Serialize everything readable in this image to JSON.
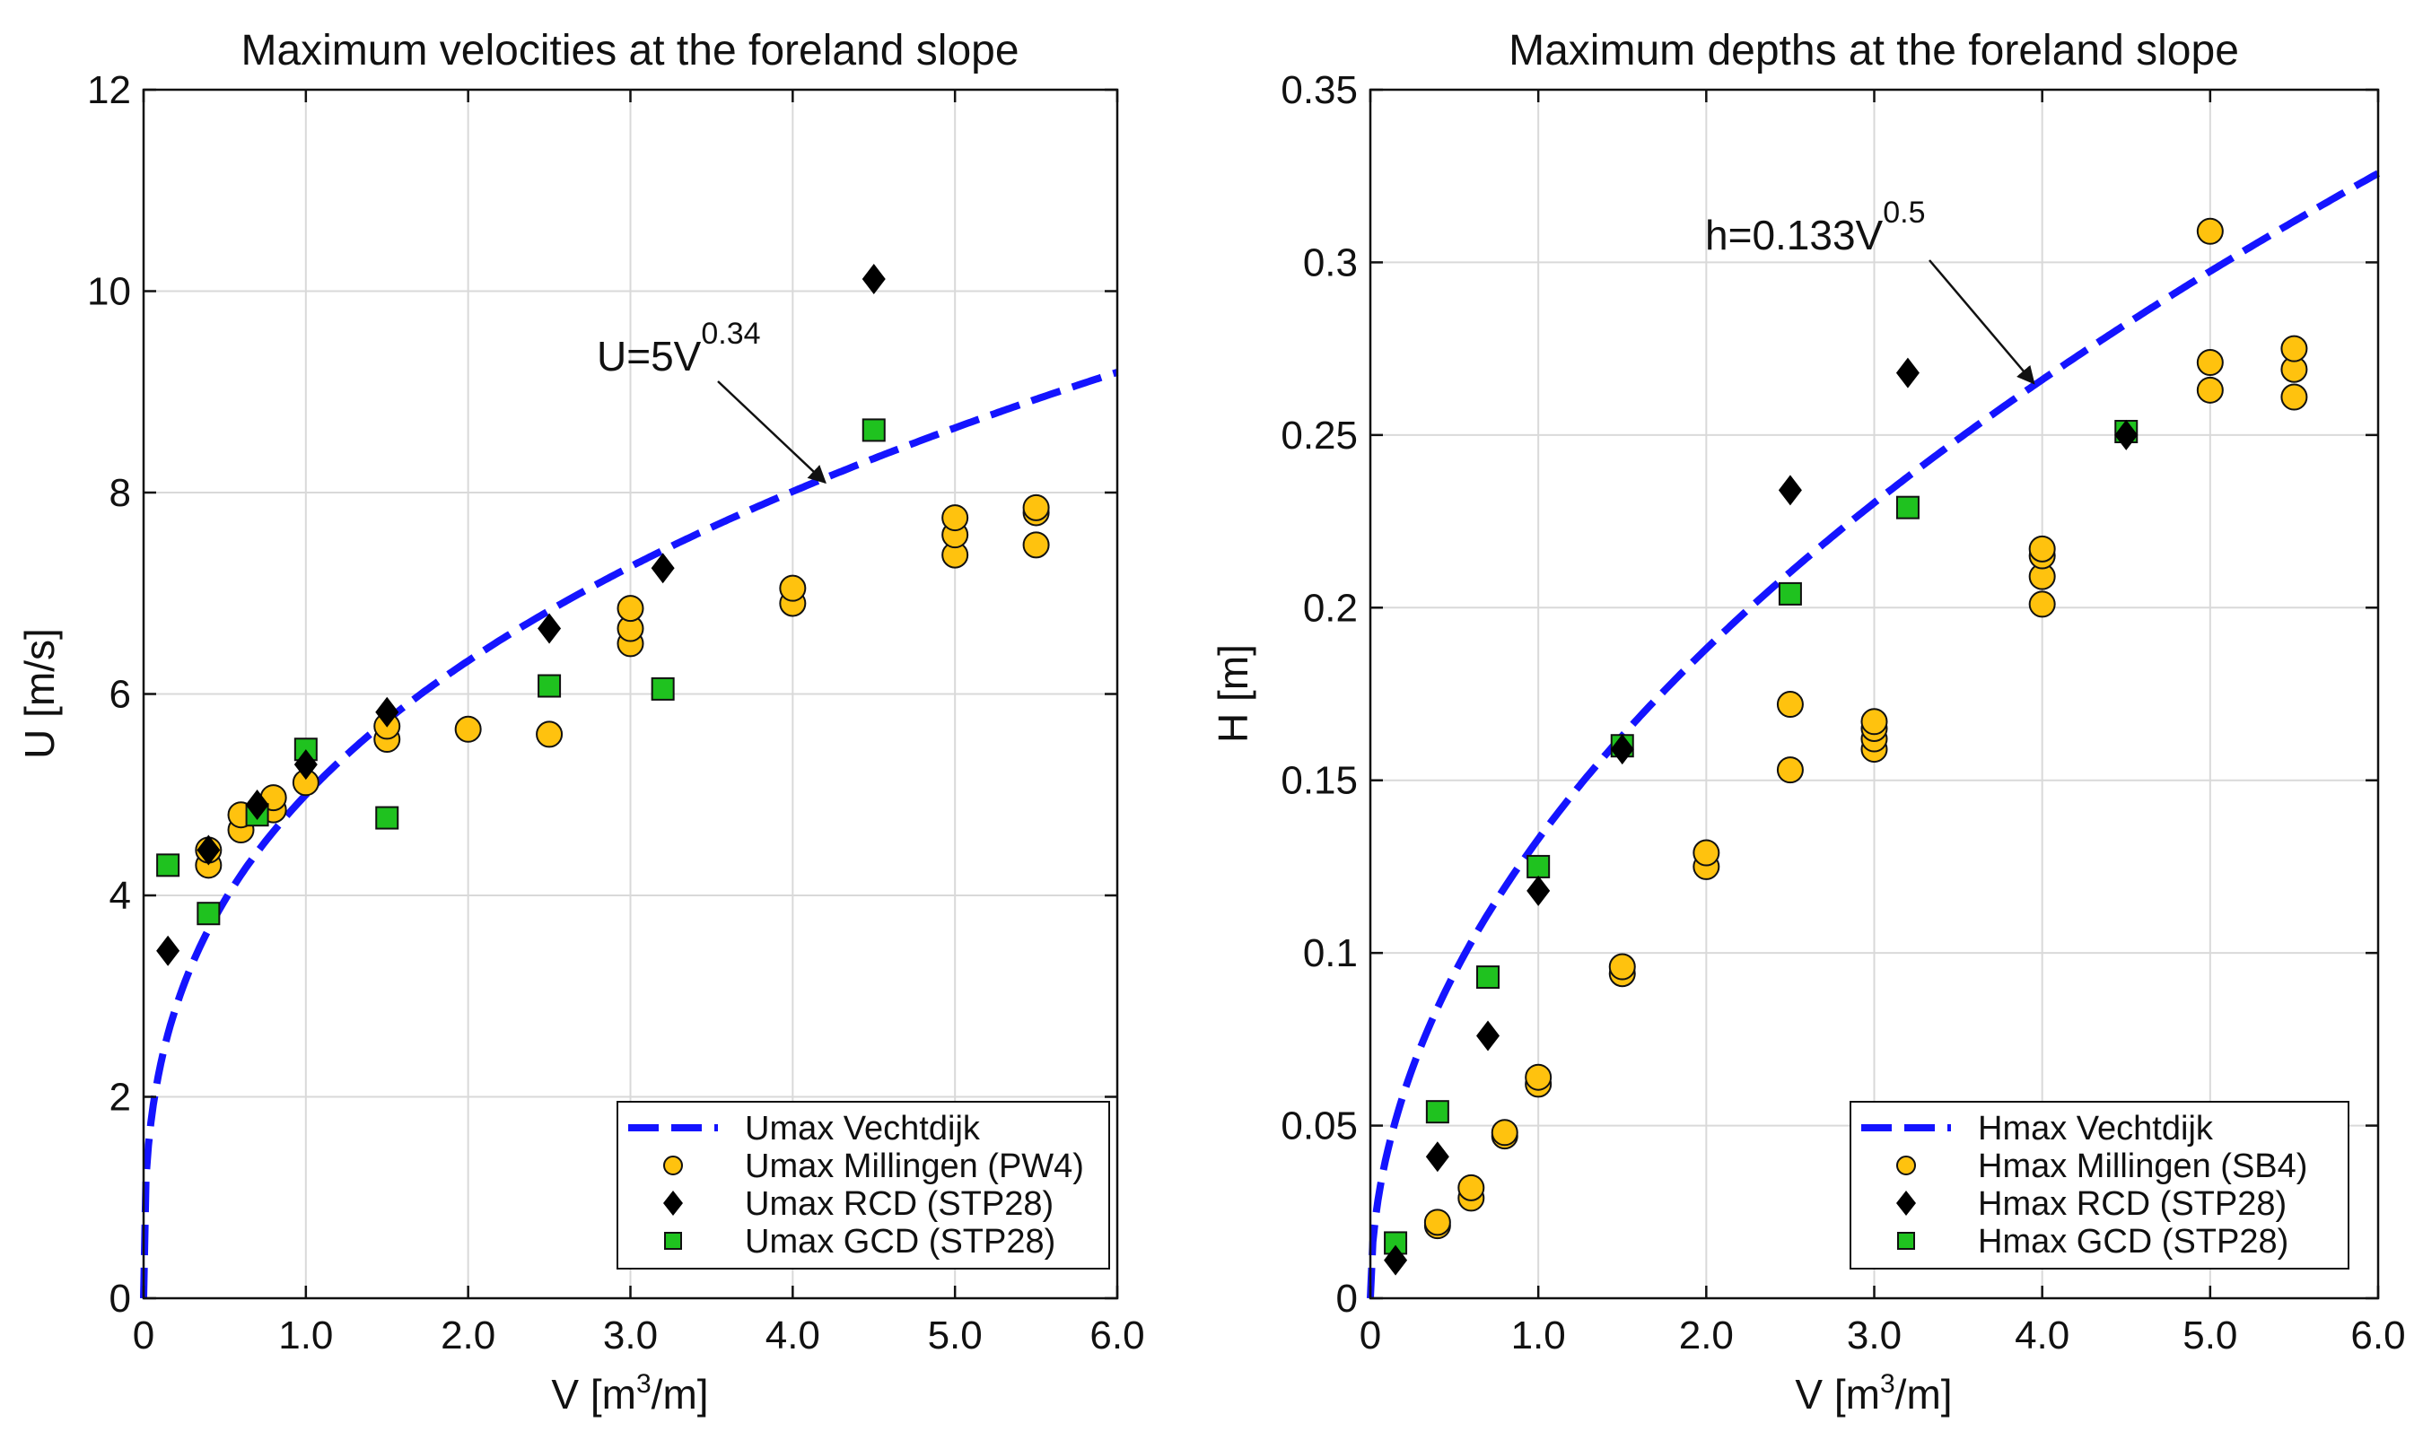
{
  "colors": {
    "fit_line": "#1414ff",
    "millingen": "#ffc20e",
    "rcd": "#000000",
    "gcd": "#1fc21f",
    "grid": "#d9d9d9"
  },
  "chart_data": [
    {
      "type": "scatter",
      "title": "Maximum velocities at the foreland slope",
      "xlabel_main": "V [m",
      "xlabel_sup": "3",
      "xlabel_tail": "/m]",
      "ylabel": "U [m/s]",
      "xlim": [
        0,
        6
      ],
      "ylim": [
        0,
        12
      ],
      "xticks": [
        0,
        1,
        2,
        3,
        4,
        5,
        6
      ],
      "xtick_labels": [
        "0",
        "1.0",
        "2.0",
        "3.0",
        "4.0",
        "5.0",
        "6.0"
      ],
      "yticks": [
        0,
        2,
        4,
        6,
        8,
        10,
        12
      ],
      "ytick_labels": [
        "0",
        "2",
        "4",
        "6",
        "8",
        "10",
        "12"
      ],
      "grid": true,
      "legend_position": "bottom-right",
      "fit": {
        "name": "Umax Vechtdijk",
        "coef": 5,
        "exp": 0.34
      },
      "annotation": {
        "base": "U=5V",
        "sup": "0.34",
        "arrow_tip": [
          4.2,
          8.1
        ]
      },
      "series": [
        {
          "name": "Umax Millingen (PW4)",
          "marker": "circle",
          "points": [
            [
              0.4,
              4.3
            ],
            [
              0.4,
              4.45
            ],
            [
              0.6,
              4.65
            ],
            [
              0.6,
              4.8
            ],
            [
              0.8,
              4.85
            ],
            [
              0.8,
              4.97
            ],
            [
              1.0,
              5.12
            ],
            [
              1.5,
              5.55
            ],
            [
              1.5,
              5.68
            ],
            [
              2.0,
              5.65
            ],
            [
              2.5,
              5.6
            ],
            [
              3.0,
              6.5
            ],
            [
              3.0,
              6.65
            ],
            [
              3.0,
              6.85
            ],
            [
              4.0,
              6.9
            ],
            [
              4.0,
              7.05
            ],
            [
              5.0,
              7.38
            ],
            [
              5.0,
              7.58
            ],
            [
              5.0,
              7.75
            ],
            [
              5.5,
              7.48
            ],
            [
              5.5,
              7.8
            ],
            [
              5.5,
              7.85
            ]
          ]
        },
        {
          "name": "Umax RCD (STP28)",
          "marker": "diamond",
          "points": [
            [
              0.15,
              3.45
            ],
            [
              0.4,
              4.45
            ],
            [
              0.7,
              4.9
            ],
            [
              1.0,
              5.3
            ],
            [
              1.5,
              5.82
            ],
            [
              2.5,
              6.65
            ],
            [
              3.2,
              7.25
            ],
            [
              4.5,
              10.12
            ]
          ]
        },
        {
          "name": "Umax GCD (STP28)",
          "marker": "square",
          "points": [
            [
              0.15,
              4.3
            ],
            [
              0.4,
              3.82
            ],
            [
              0.7,
              4.8
            ],
            [
              1.0,
              5.45
            ],
            [
              1.5,
              4.77
            ],
            [
              2.5,
              6.08
            ],
            [
              3.2,
              6.05
            ],
            [
              4.5,
              8.62
            ]
          ]
        }
      ]
    },
    {
      "type": "scatter",
      "title": "Maximum depths at the foreland slope",
      "xlabel_main": "V [m",
      "xlabel_sup": "3",
      "xlabel_tail": "/m]",
      "ylabel": "H [m]",
      "xlim": [
        0,
        6
      ],
      "ylim": [
        0,
        0.35
      ],
      "xticks": [
        0,
        1,
        2,
        3,
        4,
        5,
        6
      ],
      "xtick_labels": [
        "0",
        "1.0",
        "2.0",
        "3.0",
        "4.0",
        "5.0",
        "6.0"
      ],
      "yticks": [
        0,
        0.05,
        0.1,
        0.15,
        0.2,
        0.25,
        0.3,
        0.35
      ],
      "ytick_labels": [
        "0",
        "0.05",
        "0.1",
        "0.15",
        "0.2",
        "0.25",
        "0.3",
        "0.35"
      ],
      "grid": true,
      "legend_position": "bottom-right",
      "fit": {
        "name": "Hmax Vechtdijk",
        "coef": 0.133,
        "exp": 0.5
      },
      "annotation": {
        "base": "h=0.133V",
        "sup": "0.5",
        "arrow_tip": [
          3.95,
          0.265
        ]
      },
      "series": [
        {
          "name": "Hmax Millingen (SB4)",
          "marker": "circle",
          "points": [
            [
              0.4,
              0.021
            ],
            [
              0.4,
              0.022
            ],
            [
              0.6,
              0.029
            ],
            [
              0.6,
              0.032
            ],
            [
              0.8,
              0.047
            ],
            [
              0.8,
              0.048
            ],
            [
              1.0,
              0.062
            ],
            [
              1.0,
              0.064
            ],
            [
              1.5,
              0.094
            ],
            [
              1.5,
              0.096
            ],
            [
              2.0,
              0.125
            ],
            [
              2.0,
              0.129
            ],
            [
              2.5,
              0.153
            ],
            [
              2.5,
              0.172
            ],
            [
              3.0,
              0.159
            ],
            [
              3.0,
              0.162
            ],
            [
              3.0,
              0.165
            ],
            [
              3.0,
              0.167
            ],
            [
              4.0,
              0.201
            ],
            [
              4.0,
              0.209
            ],
            [
              4.0,
              0.215
            ],
            [
              4.0,
              0.217
            ],
            [
              5.0,
              0.263
            ],
            [
              5.0,
              0.271
            ],
            [
              5.0,
              0.309
            ],
            [
              5.5,
              0.261
            ],
            [
              5.5,
              0.269
            ],
            [
              5.5,
              0.275
            ]
          ]
        },
        {
          "name": "Hmax RCD (STP28)",
          "marker": "diamond",
          "points": [
            [
              0.15,
              0.011
            ],
            [
              0.4,
              0.041
            ],
            [
              0.7,
              0.076
            ],
            [
              1.0,
              0.118
            ],
            [
              1.5,
              0.159
            ],
            [
              2.5,
              0.234
            ],
            [
              3.2,
              0.268
            ],
            [
              4.5,
              0.25
            ]
          ]
        },
        {
          "name": "Hmax GCD (STP28)",
          "marker": "square",
          "points": [
            [
              0.15,
              0.016
            ],
            [
              0.4,
              0.054
            ],
            [
              0.7,
              0.093
            ],
            [
              1.0,
              0.125
            ],
            [
              1.5,
              0.16
            ],
            [
              2.5,
              0.204
            ],
            [
              3.2,
              0.229
            ],
            [
              4.5,
              0.251
            ]
          ]
        }
      ]
    }
  ]
}
